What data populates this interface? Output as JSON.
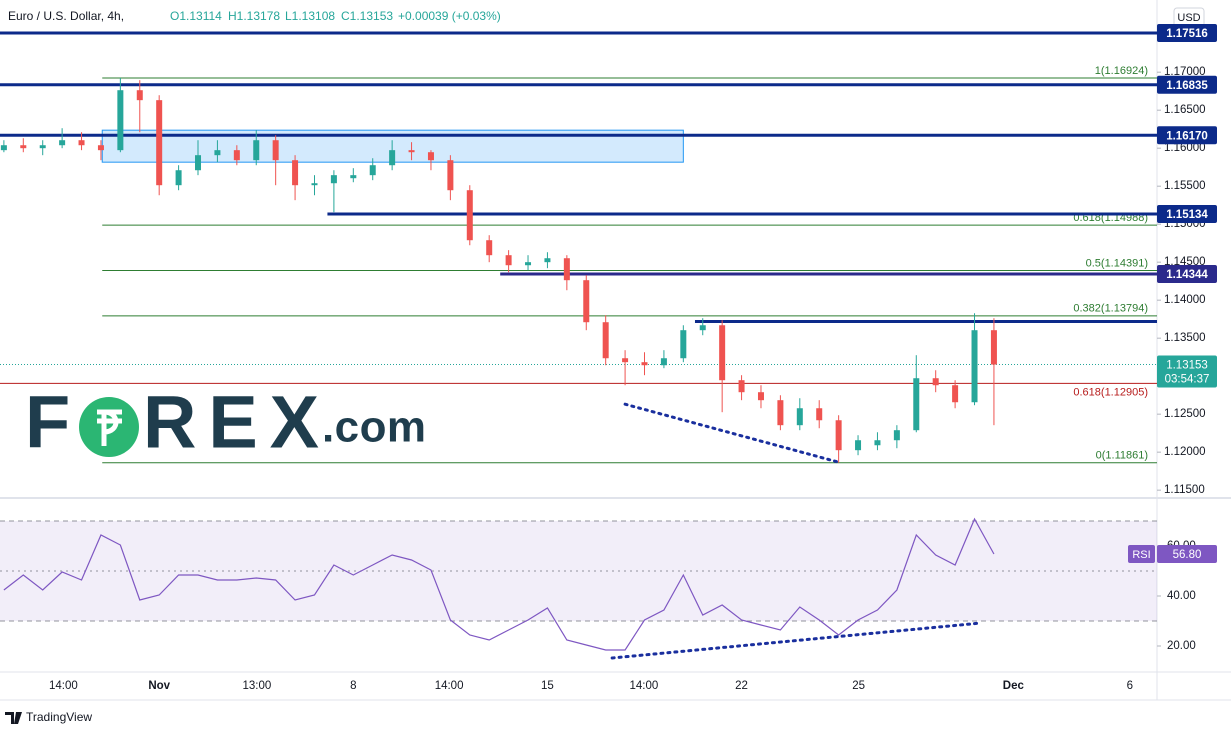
{
  "header": {
    "symbol": "Euro / U.S. Dollar, 4h,",
    "ohlc": [
      "O1.13114",
      "H1.13178",
      "L1.13108",
      "C1.13153",
      "+0.00039 (+0.03%)"
    ],
    "currency": "USD"
  },
  "logo": {
    "parts": [
      "F",
      "REX",
      ".com"
    ]
  },
  "footer": "TradingView",
  "chart_data": [
    {
      "type": "candlestick",
      "x": [
        -24,
        -21,
        -18,
        -15,
        -12,
        -9,
        -6,
        -3,
        0,
        3,
        6,
        9,
        12,
        15,
        18,
        21,
        24,
        27,
        30,
        33,
        36,
        39,
        42,
        45,
        48,
        51,
        54,
        57,
        60,
        63,
        66,
        69,
        72,
        75,
        78,
        81,
        84,
        87,
        90,
        93,
        96,
        99,
        102,
        105,
        108,
        111,
        114,
        117,
        120,
        123,
        126,
        129
      ],
      "open": [
        1.15974,
        1.16039,
        1.16,
        1.16039,
        1.16105,
        1.16039,
        1.15974,
        1.16763,
        1.16632,
        1.15513,
        1.1571,
        1.15908,
        1.15974,
        1.15842,
        1.16105,
        1.15842,
        1.15513,
        1.15539,
        1.15605,
        1.15645,
        1.15776,
        1.15974,
        1.15947,
        1.15842,
        1.15447,
        1.14789,
        1.14592,
        1.1446,
        1.145,
        1.14552,
        1.14263,
        1.1371,
        1.13236,
        1.13184,
        1.13144,
        1.13236,
        1.13605,
        1.1367,
        1.12947,
        1.12789,
        1.12684,
        1.12355,
        1.12578,
        1.1242,
        1.12026,
        1.12091,
        1.12157,
        1.12289,
        1.12973,
        1.12881,
        1.12657,
        1.13605
      ],
      "high": [
        1.16105,
        1.16131,
        1.16105,
        1.16263,
        1.1621,
        1.16105,
        1.16924,
        1.16895,
        1.16697,
        1.15776,
        1.16105,
        1.16105,
        1.16039,
        1.16237,
        1.16171,
        1.15908,
        1.15645,
        1.1571,
        1.15737,
        1.15868,
        1.16105,
        1.16079,
        1.15974,
        1.15908,
        1.15513,
        1.14855,
        1.14658,
        1.14592,
        1.14631,
        1.14592,
        1.14329,
        1.13802,
        1.13342,
        1.13315,
        1.13342,
        1.1367,
        1.13763,
        1.13736,
        1.13013,
        1.12881,
        1.12749,
        1.1271,
        1.12684,
        1.12486,
        1.12223,
        1.12262,
        1.12355,
        1.13276,
        1.13078,
        1.12947,
        1.13828,
        1.13763
      ],
      "low": [
        1.15947,
        1.15947,
        1.15908,
        1.16,
        1.15974,
        1.15842,
        1.15947,
        1.1621,
        1.15381,
        1.15447,
        1.15645,
        1.15816,
        1.15776,
        1.15776,
        1.15513,
        1.15316,
        1.15381,
        1.15158,
        1.15552,
        1.15579,
        1.1571,
        1.15842,
        1.1571,
        1.15316,
        1.14723,
        1.145,
        1.14368,
        1.14394,
        1.14421,
        1.14131,
        1.13605,
        1.13144,
        1.12881,
        1.13013,
        1.13105,
        1.13184,
        1.13539,
        1.12526,
        1.12684,
        1.12578,
        1.12289,
        1.12289,
        1.12315,
        1.11861,
        1.1196,
        1.12026,
        1.12052,
        1.12262,
        1.12789,
        1.12578,
        1.12618,
        1.12355
      ],
      "close": [
        1.16039,
        1.16,
        1.16039,
        1.16105,
        1.16039,
        1.15974,
        1.16763,
        1.16632,
        1.15513,
        1.1571,
        1.15908,
        1.15974,
        1.15842,
        1.16105,
        1.15842,
        1.15513,
        1.15539,
        1.15645,
        1.15645,
        1.15776,
        1.15974,
        1.15947,
        1.15842,
        1.15447,
        1.14789,
        1.14592,
        1.1446,
        1.145,
        1.14552,
        1.14263,
        1.1371,
        1.13236,
        1.13184,
        1.13144,
        1.13236,
        1.13605,
        1.1367,
        1.12947,
        1.12789,
        1.12684,
        1.12355,
        1.12578,
        1.1242,
        1.12026,
        1.12157,
        1.12157,
        1.12289,
        1.12973,
        1.12881,
        1.12657,
        1.13605,
        1.13153
      ],
      "up_color": "#26a69a",
      "down_color": "#ef5350",
      "xlim": [
        -24.6,
        154.2
      ],
      "xticks": [
        {
          "value": -14.8,
          "label": "14:00"
        },
        {
          "value": 0,
          "label": "Nov"
        },
        {
          "value": 15.1,
          "label": "13:00"
        },
        {
          "value": 30,
          "label": "8"
        },
        {
          "value": 44.8,
          "label": "14:00"
        },
        {
          "value": 60,
          "label": "15"
        },
        {
          "value": 74.9,
          "label": "14:00"
        },
        {
          "value": 90,
          "label": "22"
        },
        {
          "value": 108.1,
          "label": "25"
        },
        {
          "value": 132,
          "label": "Dec"
        },
        {
          "value": 150,
          "label": "6"
        }
      ],
      "ylim": [
        1.1141,
        1.1795
      ],
      "yticks": [
        {
          "value": 1.17,
          "label": "1.17000"
        },
        {
          "value": 1.165,
          "label": "1.16500"
        },
        {
          "value": 1.16,
          "label": "1.16000"
        },
        {
          "value": 1.155,
          "label": "1.15500"
        },
        {
          "value": 1.15,
          "label": "1.15000"
        },
        {
          "value": 1.145,
          "label": "1.14500"
        },
        {
          "value": 1.14,
          "label": "1.14000"
        },
        {
          "value": 1.135,
          "label": "1.13500"
        },
        {
          "value": 1.13,
          "label": "1.13000"
        },
        {
          "value": 1.125,
          "label": "1.12500"
        },
        {
          "value": 1.12,
          "label": "1.12000"
        },
        {
          "value": 1.115,
          "label": "1.11500"
        }
      ],
      "zones": [
        {
          "x": [
            -8.8,
            81
          ],
          "y": [
            1.15816,
            1.16237
          ],
          "color": "#2196f3"
        }
      ],
      "fib": [
        {
          "value": 1.16924,
          "label": "1(1.16924)",
          "start": -8.8,
          "color": "#2e7d32"
        },
        {
          "value": 1.14988,
          "label": "0.618(1.14988)",
          "start": -8.8,
          "color": "#2e7d32"
        },
        {
          "value": 1.14391,
          "label": "0.5(1.14391)",
          "start": -8.8,
          "color": "#2e7d32"
        },
        {
          "value": 1.13794,
          "label": "0.382(1.13794)",
          "start": -8.8,
          "color": "#2e7d32"
        },
        {
          "value": 1.11861,
          "label": "0(1.11861)",
          "start": -8.8,
          "color": "#2e7d32"
        },
        {
          "value": 1.12905,
          "label": "0.618(1.12905)",
          "start": -24.6,
          "color": "#b71c1c"
        }
      ],
      "levels": [
        {
          "price": 1.17516,
          "start": -24.6,
          "color": "#0c2a8a"
        },
        {
          "price": 1.16835,
          "start": -24.6,
          "color": "#0c2a8a"
        },
        {
          "price": {
            "value": 1.1617,
            "label": "1.16170"
          },
          "start": -24.6,
          "color": "#0c2a8a"
        },
        {
          "price": 1.15134,
          "start": 26,
          "color": "#0c2a8a"
        },
        {
          "price": 1.14344,
          "start": 52.7,
          "color": "#2b2a8c"
        }
      ],
      "lines": [
        {
          "price": 1.1372,
          "start": 82.8,
          "color": "#0c2a8a"
        }
      ],
      "trendline": {
        "x": [
          72,
          105
        ],
        "y": [
          1.12631,
          1.11868
        ],
        "color": "#1a2f9e"
      },
      "last_price": 1.13153,
      "countdown": "03:54:37"
    },
    {
      "type": "line",
      "name": "RSI",
      "color": "#7e57c2",
      "x": [
        -24,
        -21,
        -18,
        -15,
        -12,
        -9,
        -6,
        -3,
        0,
        3,
        6,
        9,
        12,
        15,
        18,
        21,
        24,
        27,
        30,
        33,
        36,
        39,
        42,
        45,
        48,
        51,
        54,
        57,
        60,
        63,
        66,
        69,
        72,
        75,
        78,
        81,
        84,
        87,
        90,
        93,
        96,
        99,
        102,
        105,
        108,
        111,
        114,
        117,
        120,
        123,
        126,
        129
      ],
      "values": [
        42.4,
        48.4,
        42.4,
        49.6,
        46.4,
        64.4,
        60.4,
        38.4,
        40.4,
        48.4,
        48.4,
        46.4,
        46.4,
        47.2,
        46.4,
        38.4,
        40.4,
        52.4,
        48.4,
        52.4,
        56.4,
        54.4,
        50.4,
        30.4,
        24.4,
        22.4,
        26.4,
        30.4,
        35.2,
        22.4,
        20.4,
        18.4,
        18.4,
        30.4,
        34.4,
        48.4,
        32.4,
        36.4,
        30.4,
        28.4,
        26.4,
        35.6,
        30.4,
        24.4,
        30.4,
        34.4,
        42.4,
        64.4,
        56.4,
        52.4,
        70.8,
        56.8
      ],
      "ylim": [
        9.6,
        78.4
      ],
      "yticks": [
        {
          "value": 60,
          "label": "60.00"
        },
        {
          "value": 40,
          "label": "40.00"
        },
        {
          "value": 20,
          "label": "20.00"
        }
      ],
      "bands": [
        70,
        50,
        30
      ],
      "last_value": {
        "value": 56.8,
        "label": "56.80"
      },
      "trendline": {
        "x": [
          70,
          127
        ],
        "y": [
          15.2,
          29.2
        ],
        "color": "#1a2f9e"
      }
    }
  ]
}
